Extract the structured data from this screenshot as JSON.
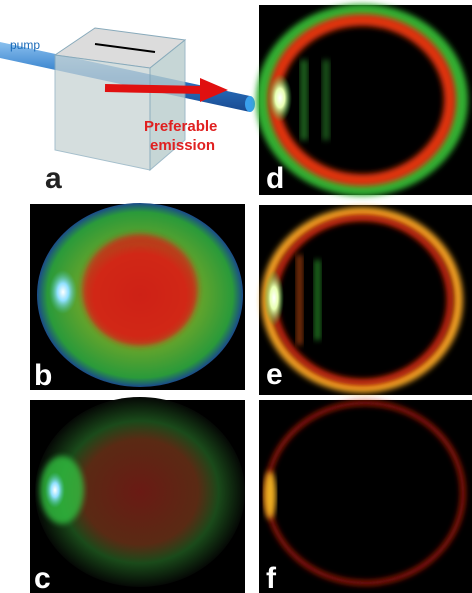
{
  "diagram": {
    "pump_label": "pump",
    "emission_label": [
      "Preferable",
      "emission"
    ],
    "panels": [
      {
        "label": "a"
      },
      {
        "label": "b"
      },
      {
        "label": "c"
      },
      {
        "label": "d"
      },
      {
        "label": "e"
      },
      {
        "label": "f"
      }
    ]
  }
}
